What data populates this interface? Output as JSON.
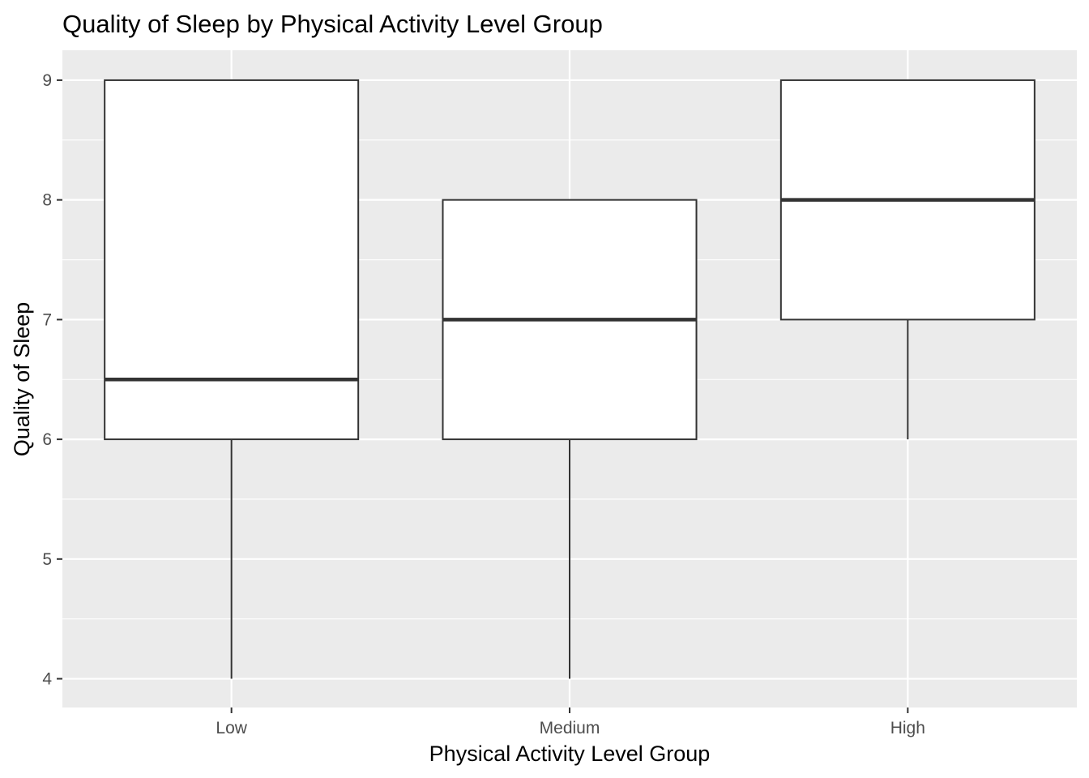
{
  "chart_data": {
    "type": "boxplot",
    "title": "Quality of Sleep by Physical Activity Level Group",
    "xlabel": "Physical Activity Level Group",
    "ylabel": "Quality of Sleep",
    "categories": [
      "Low",
      "Medium",
      "High"
    ],
    "boxes": [
      {
        "category": "Low",
        "min": 4,
        "q1": 6,
        "median": 6.5,
        "q3": 9,
        "max": 9
      },
      {
        "category": "Medium",
        "min": 4,
        "q1": 6,
        "median": 7,
        "q3": 8,
        "max": 8
      },
      {
        "category": "High",
        "min": 6,
        "q1": 7,
        "median": 8,
        "q3": 9,
        "max": 9
      }
    ],
    "yticks": [
      4,
      5,
      6,
      7,
      8,
      9
    ],
    "ylim": [
      3.76,
      9.25
    ],
    "grid": true,
    "legend": "none",
    "colors": {
      "panel_background": "#ebebeb",
      "grid": "#ffffff",
      "box_fill": "#ffffff",
      "box_stroke": "#333333",
      "tick_label": "#4d4d4d",
      "tick": "#333333"
    }
  }
}
